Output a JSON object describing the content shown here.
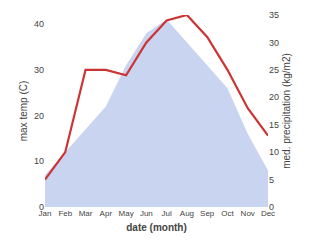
{
  "chart_data": {
    "type": "line",
    "categories": [
      "Jan",
      "Feb",
      "Mar",
      "Apr",
      "May",
      "Jun",
      "Jul",
      "Aug",
      "Sep",
      "Oct",
      "Nov",
      "Dec"
    ],
    "series": [
      {
        "type": "area",
        "color": "#c8d4f0",
        "values": [
          7,
          12,
          17,
          22,
          31,
          38,
          41,
          36,
          31,
          26,
          16,
          8
        ]
      },
      {
        "type": "line",
        "color": "#cc3333",
        "axis": "y2",
        "values": [
          5,
          10,
          25,
          25,
          24,
          30,
          34,
          35,
          31,
          25,
          18,
          13
        ]
      }
    ],
    "xlabel": "date (month)",
    "ylabel": "max temp (C)",
    "y2label": "med. precipitation (kg/m2)",
    "ylim": [
      0,
      42
    ],
    "yticks": [
      0,
      10,
      20,
      30,
      40
    ],
    "y2lim": [
      0,
      35
    ],
    "y2ticks": [
      0,
      5,
      10,
      15,
      20,
      25,
      30,
      35
    ],
    "grid": false
  }
}
